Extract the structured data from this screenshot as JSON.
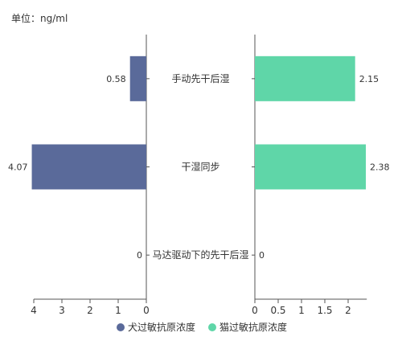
{
  "unit_label": "单位：ng/ml",
  "chart_data": {
    "type": "bar",
    "orientation": "horizontal",
    "layout": "butterfly",
    "categories": [
      "手动先干后湿",
      "干湿同步",
      "马达驱动下的先干后湿"
    ],
    "series": [
      {
        "name": "犬过敏抗原浓度",
        "values": [
          0.58,
          4.07,
          0
        ],
        "value_labels": [
          "0.58",
          "4.07",
          "0"
        ],
        "color": "#5a6a9a",
        "side": "left",
        "xlim": [
          0,
          4.2
        ],
        "ticks": [
          4,
          3,
          2,
          1,
          0
        ]
      },
      {
        "name": "猫过敏抗原浓度",
        "values": [
          2.15,
          2.38,
          0
        ],
        "value_labels": [
          "2.15",
          "2.38",
          "0"
        ],
        "color": "#5fd6a8",
        "side": "right",
        "xlim": [
          0,
          2.4
        ],
        "ticks": [
          "0",
          "0.5",
          "1",
          "1.5",
          "2"
        ]
      }
    ],
    "legend_position": "bottom",
    "grid": false
  }
}
